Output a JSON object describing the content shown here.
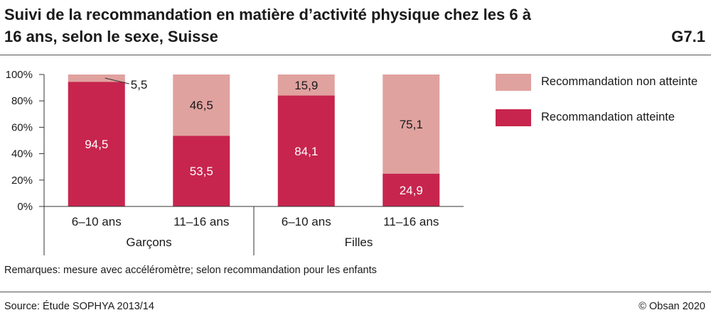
{
  "header": {
    "title": "Suivi de la recommandation en matière d’activité physique chez les 6 à 16 ans, selon le sexe, Suisse",
    "figure_id": "G7.1"
  },
  "footer": {
    "note": "Remarques: mesure avec accéléromètre; selon recommandation pour les enfants",
    "source": "Source: Étude SOPHYA 2013/14",
    "copyright": "© Obsan 2020"
  },
  "legend": {
    "items": [
      {
        "label": "Recommandation non atteinte",
        "color": "#e0a29f"
      },
      {
        "label": "Recommandation atteinte",
        "color": "#c7254e"
      }
    ]
  },
  "chart_data": {
    "type": "bar",
    "stacked": true,
    "title": "Suivi de la recommandation en matière d’activité physique chez les 6 à 16 ans, selon le sexe, Suisse",
    "categories": [
      "6–10 ans",
      "11–16 ans",
      "6–10 ans",
      "11–16 ans"
    ],
    "groups": [
      {
        "name": "Garçons",
        "categories": [
          "6–10 ans",
          "11–16 ans"
        ]
      },
      {
        "name": "Filles",
        "categories": [
          "6–10 ans",
          "11–16 ans"
        ]
      }
    ],
    "series": [
      {
        "name": "Recommandation atteinte",
        "values": [
          94.5,
          53.5,
          84.1,
          24.9
        ],
        "labels": [
          "94,5",
          "53,5",
          "84,1",
          "24,9"
        ],
        "color": "#c7254e"
      },
      {
        "name": "Recommandation non atteinte",
        "values": [
          5.5,
          46.5,
          15.9,
          75.1
        ],
        "labels": [
          "5,5",
          "46,5",
          "15,9",
          "75,1"
        ],
        "color": "#e0a29f"
      }
    ],
    "yticks": [
      "0%",
      "20%",
      "40%",
      "60%",
      "80%",
      "100%"
    ],
    "ylim": [
      0,
      100
    ],
    "grid": false,
    "legend_position": "right"
  }
}
